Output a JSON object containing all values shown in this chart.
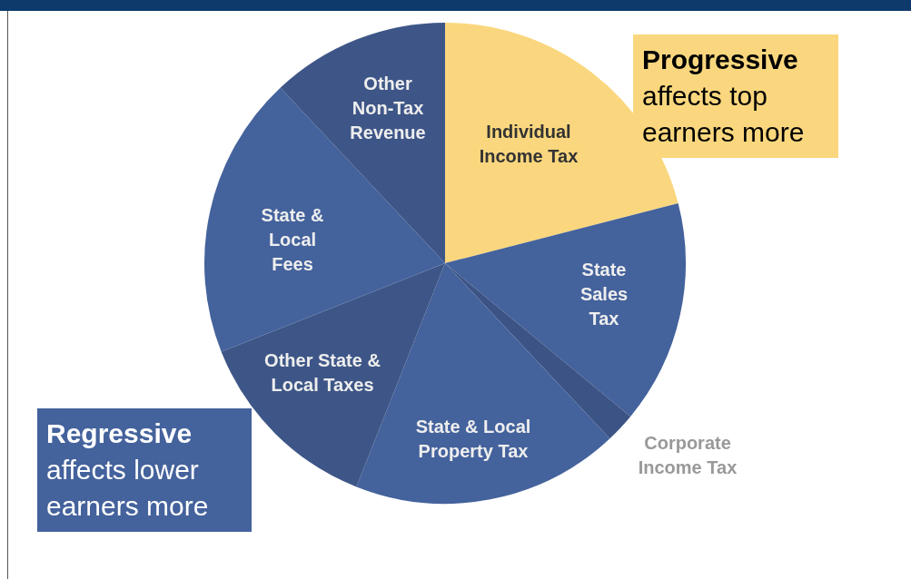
{
  "chart_data": {
    "type": "pie",
    "categories": [
      "Individual Income Tax",
      "State Sales Tax",
      "Corporate Income Tax",
      "State & Local Property Tax",
      "Other State & Local Taxes",
      "State & Local Fees",
      "Other Non-Tax Revenue"
    ],
    "values": [
      21,
      15,
      2,
      18,
      13,
      19,
      12
    ],
    "colors": [
      "#fad77e",
      "#44629c",
      "#3c5485",
      "#44629c",
      "#3e5687",
      "#44629c",
      "#3e5687"
    ],
    "legend": false,
    "annotations": [
      "Progressive affects top earners more",
      "Regressive affects lower earners more"
    ]
  }
}
